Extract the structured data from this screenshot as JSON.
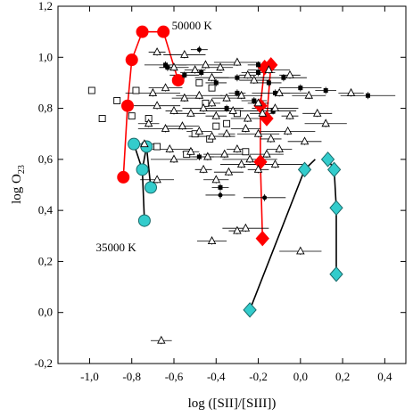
{
  "chart_data": {
    "type": "scatter",
    "xlabel": "log ([SII]/[SIII])",
    "ylabel_main": "log O",
    "ylabel_sub": "23",
    "xlim": [
      -1.15,
      0.5
    ],
    "ylim": [
      -0.2,
      1.2
    ],
    "xticks": [
      -1.0,
      -0.8,
      -0.6,
      -0.4,
      -0.2,
      0.0,
      0.2,
      0.4
    ],
    "yticks": [
      -0.2,
      0.0,
      0.2,
      0.4,
      0.6,
      0.8,
      1.0,
      1.2
    ],
    "tick_format": "comma",
    "annotations": [
      {
        "text": "50000 K",
        "x": -0.61,
        "y": 1.11
      },
      {
        "text": "35000 K",
        "x": -0.97,
        "y": 0.24
      }
    ],
    "colors": {
      "red": "#ff0000",
      "cyan": "#33cccc",
      "black": "#000000"
    },
    "model_lines": [
      {
        "points": [
          [
            -0.84,
            0.53
          ],
          [
            -0.82,
            0.81
          ],
          [
            -0.8,
            0.99
          ],
          [
            -0.75,
            1.1
          ],
          [
            -0.65,
            1.1
          ],
          [
            -0.58,
            0.91
          ]
        ]
      },
      {
        "points": [
          [
            -0.18,
            0.29
          ],
          [
            -0.19,
            0.59
          ],
          [
            -0.19,
            0.81
          ],
          [
            -0.17,
            0.96
          ],
          [
            -0.14,
            0.97
          ],
          [
            -0.16,
            0.76
          ]
        ]
      },
      {
        "points": [
          [
            -0.79,
            0.66
          ],
          [
            -0.75,
            0.56
          ],
          [
            -0.73,
            0.65
          ],
          [
            -0.71,
            0.49
          ]
        ]
      },
      {
        "points": [
          [
            -0.74,
            0.36
          ],
          [
            -0.75,
            0.56
          ]
        ]
      },
      {
        "points": [
          [
            -0.24,
            0.01
          ],
          [
            0.02,
            0.56
          ],
          [
            0.07,
            0.6
          ]
        ]
      },
      {
        "points": [
          [
            0.13,
            0.6
          ],
          [
            0.16,
            0.56
          ],
          [
            0.17,
            0.41
          ],
          [
            0.17,
            0.15
          ]
        ]
      }
    ],
    "series": [
      {
        "marker": "circle",
        "color": "#ff0000",
        "points": [
          [
            -0.84,
            0.53
          ],
          [
            -0.82,
            0.81
          ],
          [
            -0.8,
            0.99
          ],
          [
            -0.75,
            1.1
          ],
          [
            -0.65,
            1.1
          ],
          [
            -0.58,
            0.91
          ]
        ]
      },
      {
        "marker": "diamond",
        "color": "#ff0000",
        "points": [
          [
            -0.18,
            0.29
          ],
          [
            -0.19,
            0.59
          ],
          [
            -0.19,
            0.81
          ],
          [
            -0.17,
            0.96
          ],
          [
            -0.14,
            0.97
          ],
          [
            -0.16,
            0.76
          ]
        ]
      },
      {
        "marker": "circle",
        "color": "#33cccc",
        "points": [
          [
            -0.79,
            0.66
          ],
          [
            -0.73,
            0.65
          ],
          [
            -0.75,
            0.56
          ],
          [
            -0.71,
            0.49
          ],
          [
            -0.74,
            0.36
          ]
        ]
      },
      {
        "marker": "diamond",
        "color": "#33cccc",
        "points": [
          [
            -0.24,
            0.01
          ],
          [
            0.02,
            0.56
          ],
          [
            0.13,
            0.6
          ],
          [
            0.16,
            0.56
          ],
          [
            0.17,
            0.41
          ],
          [
            0.17,
            0.15
          ]
        ]
      },
      {
        "marker": "open-square",
        "color": "#000000",
        "points": [
          [
            -0.99,
            0.87
          ],
          [
            -0.94,
            0.76
          ],
          [
            -0.87,
            0.83
          ],
          [
            -0.8,
            0.77
          ],
          [
            -0.78,
            0.87
          ],
          [
            -0.72,
            0.76
          ],
          [
            -0.68,
            0.65
          ],
          [
            -0.54,
            0.62
          ],
          [
            -0.48,
            0.9
          ],
          [
            -0.45,
            0.82
          ],
          [
            -0.43,
            0.68
          ],
          [
            -0.4,
            0.73
          ],
          [
            -0.35,
            0.74
          ],
          [
            -0.3,
            0.78
          ],
          [
            -0.26,
            0.63
          ],
          [
            -0.5,
            0.7
          ],
          [
            -0.42,
            0.88
          ]
        ]
      },
      {
        "marker": "filled-square",
        "color": "#000000",
        "points": [
          [
            -0.63,
            0.96
          ],
          [
            -0.55,
            0.93
          ],
          [
            -0.47,
            0.94
          ],
          [
            -0.4,
            0.9
          ],
          [
            -0.3,
            0.92
          ],
          [
            -0.2,
            0.94
          ],
          [
            -0.15,
            0.9
          ],
          [
            -0.08,
            0.92
          ],
          [
            -0.3,
            0.86
          ],
          [
            -0.12,
            0.86
          ],
          [
            0.0,
            0.88
          ],
          [
            0.12,
            0.87
          ],
          [
            0.32,
            0.85
          ],
          [
            -0.35,
            0.8
          ],
          [
            -0.22,
            0.83
          ],
          [
            -0.13,
            0.79
          ],
          [
            -0.38,
            0.49
          ],
          [
            -0.48,
            0.61
          ],
          [
            -0.64,
            0.97
          ],
          [
            -0.2,
            0.97
          ]
        ]
      },
      {
        "marker": "filled-circle",
        "color": "#000000",
        "points": [
          [
            -0.48,
            1.03
          ],
          [
            -0.38,
            0.46
          ],
          [
            -0.17,
            0.45
          ]
        ]
      },
      {
        "marker": "open-triangle",
        "color": "#000000",
        "points": [
          [
            -0.68,
            1.02
          ],
          [
            -0.6,
            0.96
          ],
          [
            -0.55,
            1.01
          ],
          [
            -0.5,
            0.95
          ],
          [
            -0.45,
            0.97
          ],
          [
            -0.42,
            0.92
          ],
          [
            -0.38,
            0.96
          ],
          [
            -0.3,
            0.98
          ],
          [
            -0.25,
            0.93
          ],
          [
            -0.22,
            0.91
          ],
          [
            -0.15,
            0.95
          ],
          [
            -0.05,
            0.93
          ],
          [
            -0.7,
            0.86
          ],
          [
            -0.64,
            0.88
          ],
          [
            -0.55,
            0.84
          ],
          [
            -0.48,
            0.85
          ],
          [
            -0.42,
            0.82
          ],
          [
            -0.35,
            0.84
          ],
          [
            -0.28,
            0.85
          ],
          [
            -0.2,
            0.82
          ],
          [
            -0.1,
            0.86
          ],
          [
            0.04,
            0.85
          ],
          [
            0.24,
            0.86
          ],
          [
            -0.68,
            0.81
          ],
          [
            -0.6,
            0.79
          ],
          [
            -0.52,
            0.78
          ],
          [
            -0.46,
            0.8
          ],
          [
            -0.4,
            0.77
          ],
          [
            -0.32,
            0.79
          ],
          [
            -0.25,
            0.76
          ],
          [
            -0.18,
            0.78
          ],
          [
            -0.12,
            0.8
          ],
          [
            -0.05,
            0.77
          ],
          [
            0.08,
            0.78
          ],
          [
            0.12,
            0.74
          ],
          [
            -0.72,
            0.74
          ],
          [
            -0.64,
            0.72
          ],
          [
            -0.56,
            0.73
          ],
          [
            -0.48,
            0.71
          ],
          [
            -0.42,
            0.69
          ],
          [
            -0.35,
            0.7
          ],
          [
            -0.26,
            0.72
          ],
          [
            -0.2,
            0.7
          ],
          [
            -0.14,
            0.68
          ],
          [
            -0.06,
            0.71
          ],
          [
            0.02,
            0.67
          ],
          [
            -0.74,
            0.66
          ],
          [
            -0.62,
            0.64
          ],
          [
            -0.52,
            0.63
          ],
          [
            -0.44,
            0.61
          ],
          [
            -0.36,
            0.62
          ],
          [
            -0.3,
            0.64
          ],
          [
            -0.24,
            0.6
          ],
          [
            -0.16,
            0.62
          ],
          [
            -0.1,
            0.64
          ],
          [
            -0.6,
            0.6
          ],
          [
            -0.46,
            0.56
          ],
          [
            -0.34,
            0.55
          ],
          [
            -0.28,
            0.58
          ],
          [
            -0.2,
            0.56
          ],
          [
            -0.12,
            0.58
          ],
          [
            -0.68,
            0.52
          ],
          [
            -0.4,
            0.52
          ],
          [
            -0.26,
            0.33
          ],
          [
            -0.3,
            0.32
          ],
          [
            -0.42,
            0.28
          ],
          [
            0.0,
            0.24
          ],
          [
            -0.66,
            -0.11
          ]
        ]
      }
    ]
  }
}
